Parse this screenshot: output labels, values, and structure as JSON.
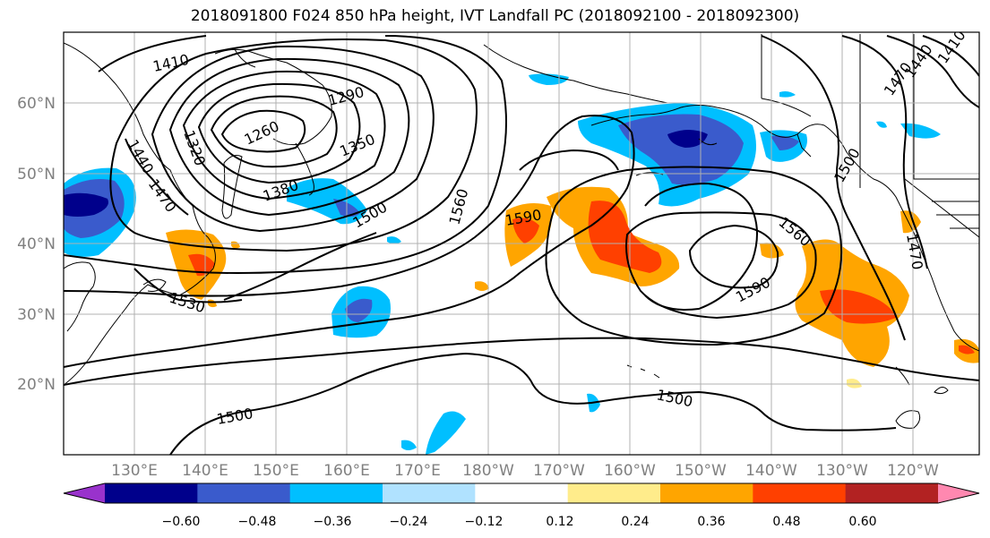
{
  "title": "2018091800 F024 850 hPa height, IVT Landfall PC (2018092100 - 2018092300)",
  "map": {
    "lon_labels": [
      "130°E",
      "140°E",
      "150°E",
      "160°E",
      "170°E",
      "180°W",
      "170°W",
      "160°W",
      "150°W",
      "140°W",
      "130°W",
      "120°W"
    ],
    "lat_labels": [
      "60°N",
      "50°N",
      "40°N",
      "30°N",
      "20°N"
    ],
    "contour_labels": [
      "1410",
      "1290",
      "1260",
      "1350",
      "1320",
      "1380",
      "1440",
      "1470",
      "1500",
      "1560",
      "1590",
      "1530",
      "1560",
      "1590",
      "1500",
      "1500",
      "1440",
      "1470",
      "1410",
      "1470",
      "1500"
    ],
    "text_color": "#808080",
    "grid_color": "#b0b0b0"
  },
  "colorbar": {
    "colors": [
      "#9932cc",
      "#00008b",
      "#3a5bcc",
      "#00bfff",
      "#b0e2ff",
      "#ffffff",
      "#ffec8b",
      "#ffa500",
      "#ff4000",
      "#b22222",
      "#ff88b0"
    ],
    "ticks": [
      "−0.60",
      "−0.48",
      "−0.36",
      "−0.24",
      "−0.12",
      "0.12",
      "0.24",
      "0.36",
      "0.48",
      "0.60"
    ]
  }
}
